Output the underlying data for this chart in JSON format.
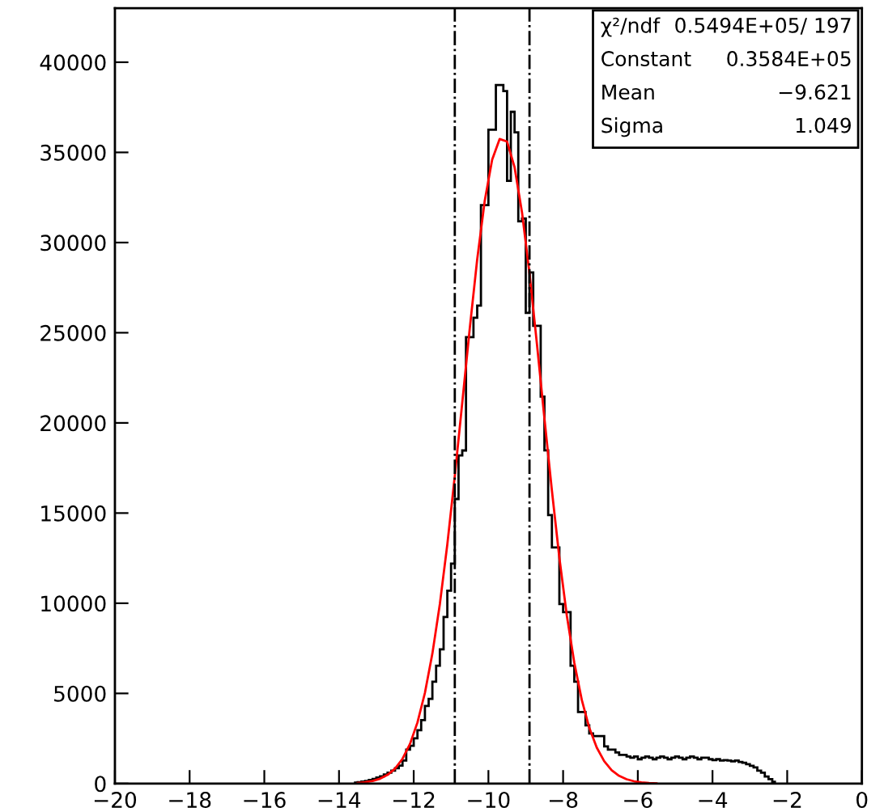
{
  "chart_data": {
    "type": "histogram",
    "bins": [
      -13.6,
      -13.5,
      -13.4,
      -13.3,
      -13.2,
      -13.1,
      -13.0,
      -12.9,
      -12.8,
      -12.7,
      -12.6,
      -12.5,
      -12.4,
      -12.3,
      -12.2,
      -12.1,
      -12.0,
      -11.9,
      -11.8,
      -11.7,
      -11.6,
      -11.5,
      -11.4,
      -11.3,
      -11.2,
      -11.1,
      -11.0,
      -10.9,
      -10.8,
      -10.7,
      -10.6,
      -10.5,
      -10.4,
      -10.3,
      -10.2,
      -10.1,
      -10.0,
      -9.9,
      -9.8,
      -9.7,
      -9.6,
      -9.5,
      -9.4,
      -9.3,
      -9.2,
      -9.1,
      -9.0,
      -8.9,
      -8.8,
      -8.7,
      -8.6,
      -8.5,
      -8.4,
      -8.3,
      -8.2,
      -8.1,
      -8.0,
      -7.9,
      -7.8,
      -7.7,
      -7.6,
      -7.5,
      -7.4,
      -7.3,
      -7.2,
      -7.1,
      -7.0,
      -6.9,
      -6.8,
      -6.7,
      -6.6,
      -6.5,
      -6.4,
      -6.3,
      -6.2,
      -6.1,
      -6.0,
      -5.9,
      -5.8,
      -5.7,
      -5.6,
      -5.5,
      -5.4,
      -5.3,
      -5.2,
      -5.1,
      -5.0,
      -4.9,
      -4.8,
      -4.7,
      -4.6,
      -4.5,
      -4.4,
      -4.3,
      -4.2,
      -4.1,
      -4.0,
      -3.9,
      -3.8,
      -3.7,
      -3.6,
      -3.5,
      -3.4,
      -3.3,
      -3.2,
      -3.1,
      -3.0,
      -2.9,
      -2.8,
      -2.7,
      -2.6,
      -2.5,
      -2.4,
      -2.3
    ],
    "values": [
      50,
      80,
      110,
      150,
      200,
      260,
      330,
      400,
      500,
      600,
      720,
      850,
      1000,
      1280,
      1880,
      2100,
      2510,
      2960,
      3520,
      4300,
      4700,
      5650,
      6540,
      7440,
      9240,
      10700,
      12200,
      15780,
      18200,
      18470,
      24750,
      24750,
      25830,
      26500,
      32080,
      32080,
      36260,
      36260,
      38740,
      38740,
      38400,
      33420,
      37250,
      36110,
      31180,
      31330,
      26100,
      28340,
      25380,
      25380,
      21460,
      18480,
      14890,
      13090,
      13090,
      9960,
      9510,
      9510,
      6540,
      5650,
      3970,
      3970,
      3230,
      2780,
      2630,
      2630,
      2630,
      2060,
      1880,
      1880,
      1730,
      1590,
      1590,
      1500,
      1430,
      1500,
      1350,
      1430,
      1500,
      1430,
      1350,
      1430,
      1500,
      1430,
      1350,
      1430,
      1500,
      1430,
      1350,
      1430,
      1500,
      1430,
      1350,
      1430,
      1430,
      1350,
      1300,
      1350,
      1280,
      1300,
      1280,
      1230,
      1280,
      1200,
      1150,
      1080,
      990,
      900,
      720,
      600,
      390,
      250,
      100
    ],
    "color": "#000000",
    "series": [
      {
        "type": "line",
        "color": "#ff0000",
        "x": [
          -13.5,
          -13.3,
          -13.1,
          -12.9,
          -12.7,
          -12.5,
          -12.3,
          -12.1,
          -11.9,
          -11.7,
          -11.5,
          -11.3,
          -11.1,
          -10.9,
          -10.7,
          -10.5,
          -10.3,
          -10.1,
          -9.9,
          -9.7,
          -9.5,
          -9.3,
          -9.1,
          -8.9,
          -8.7,
          -8.5,
          -8.3,
          -8.1,
          -7.9,
          -7.7,
          -7.5,
          -7.3,
          -7.1,
          -6.9,
          -6.7,
          -6.5,
          -6.3,
          -6.1,
          -5.9,
          -5.7,
          -5.5
        ],
        "values": [
          38,
          76,
          147,
          270,
          483,
          829,
          1373,
          2197,
          3384,
          5028,
          7209,
          9953,
          13260,
          17050,
          21120,
          25230,
          29070,
          32290,
          34590,
          35740,
          35600,
          34180,
          31670,
          28300,
          24360,
          20250,
          16250,
          12520,
          9310,
          6700,
          4640,
          3100,
          2000,
          1240,
          741,
          429,
          239,
          128,
          67,
          33,
          16
        ]
      }
    ],
    "xlim": [
      -20,
      0
    ],
    "xticks": [
      -20,
      -18,
      -16,
      -14,
      -12,
      -10,
      -8,
      -6,
      -4,
      -2,
      0
    ],
    "ylim": [
      0,
      43000
    ],
    "yticks": [
      0,
      5000,
      10000,
      15000,
      20000,
      25000,
      30000,
      35000,
      40000
    ],
    "ref_lines": [
      {
        "axis": "x",
        "value": -10.9,
        "color": "#000000",
        "line_style": "dashdot"
      },
      {
        "axis": "x",
        "value": -8.9,
        "color": "#000000",
        "line_style": "dashdot"
      }
    ],
    "annotations": [
      "χ²/ndf",
      "0.5494E+05/ 197",
      "Constant",
      "0.3584E+05",
      "Mean",
      "−9.621",
      "Sigma",
      "1.049"
    ],
    "grid": false,
    "legend": false
  }
}
